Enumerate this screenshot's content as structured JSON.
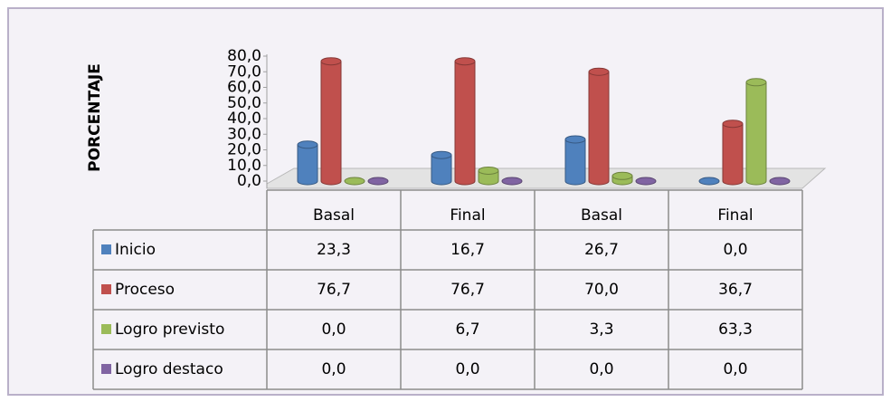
{
  "chart_data": {
    "type": "bar",
    "y_label": "PORCENTAJE",
    "categories": [
      "Basal",
      "Final",
      "Basal",
      "Final"
    ],
    "series": [
      {
        "name": "Inicio",
        "color": "#4f81bd",
        "values": [
          23.3,
          16.7,
          26.7,
          0.0
        ],
        "value_labels": [
          "23,3",
          "16,7",
          "26,7",
          "0,0"
        ]
      },
      {
        "name": "Proceso",
        "color": "#c0504d",
        "values": [
          76.7,
          76.7,
          70.0,
          36.7
        ],
        "value_labels": [
          "76,7",
          "76,7",
          "70,0",
          "36,7"
        ]
      },
      {
        "name": "Logro previsto",
        "color": "#9bbb59",
        "values": [
          0.0,
          6.7,
          3.3,
          63.3
        ],
        "value_labels": [
          "0,0",
          "6,7",
          "3,3",
          "63,3"
        ]
      },
      {
        "name": "Logro destaco",
        "color": "#8064a2",
        "values": [
          0.0,
          0.0,
          0.0,
          0.0
        ],
        "value_labels": [
          "0,0",
          "0,0",
          "0,0",
          "0,0"
        ]
      }
    ],
    "ylim": [
      0,
      80
    ],
    "yticks": [
      {
        "value": 0,
        "label": "0,0"
      },
      {
        "value": 10,
        "label": "10,0"
      },
      {
        "value": 20,
        "label": "20,0"
      },
      {
        "value": 30,
        "label": "30,0"
      },
      {
        "value": 40,
        "label": "40,0"
      },
      {
        "value": 50,
        "label": "50,0"
      },
      {
        "value": 60,
        "label": "60,0"
      },
      {
        "value": 70,
        "label": "70,0"
      },
      {
        "value": 80,
        "label": "80,0"
      }
    ]
  }
}
